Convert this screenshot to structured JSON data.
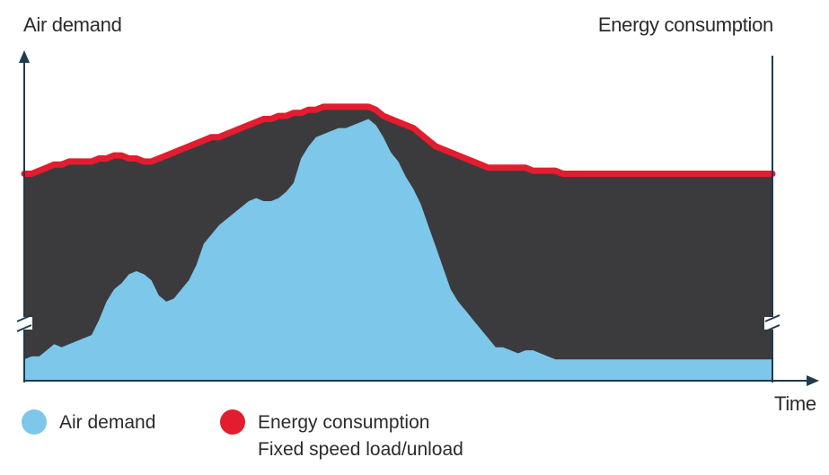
{
  "chart_data": {
    "type": "area",
    "left_axis_label": "Air demand",
    "right_axis_label": "Energy consumption",
    "xlabel": "Time",
    "ylim": [
      0,
      100
    ],
    "x": [
      0,
      1,
      2,
      3,
      4,
      5,
      6,
      7,
      8,
      9,
      10,
      11,
      12,
      13,
      14,
      15,
      16,
      17,
      18,
      19,
      20,
      21,
      22,
      23,
      24,
      25,
      26,
      27,
      28,
      29,
      30,
      31,
      32,
      33,
      34,
      35,
      36,
      37,
      38,
      39,
      40,
      41,
      42,
      43,
      44,
      45,
      46,
      47,
      48,
      49,
      50,
      51,
      52,
      53,
      54,
      55,
      56,
      57,
      58,
      59,
      60,
      61,
      62,
      63,
      64,
      65,
      66,
      67,
      68,
      69,
      70,
      71,
      72,
      73,
      74,
      75,
      76,
      77,
      78,
      79,
      80,
      81,
      82,
      83,
      84,
      85,
      86,
      87,
      88,
      89,
      90,
      91,
      92,
      93,
      94,
      95,
      96,
      97,
      98,
      99,
      100
    ],
    "series": [
      {
        "name": "Air demand",
        "color": "#7cc7ea",
        "values": [
          7,
          8,
          8,
          10,
          12,
          11,
          12,
          13,
          14,
          15,
          20,
          26,
          30,
          32,
          35,
          36,
          35,
          33,
          28,
          26,
          27,
          30,
          33,
          38,
          45,
          48,
          51,
          53,
          55,
          57,
          59,
          60,
          59,
          59,
          60,
          62,
          65,
          73,
          77,
          80,
          81,
          82,
          83,
          83,
          84,
          85,
          86,
          84,
          80,
          75,
          72,
          67,
          63,
          58,
          51,
          44,
          37,
          30,
          26,
          23,
          20,
          17,
          14,
          11,
          11,
          10,
          9,
          10,
          10,
          9,
          8,
          7,
          7,
          7,
          7,
          7,
          7,
          7,
          7,
          7,
          7,
          7,
          7,
          7,
          7,
          7,
          7,
          7,
          7,
          7,
          7,
          7,
          7,
          7,
          7,
          7,
          7,
          7,
          7,
          7,
          7
        ]
      },
      {
        "name": "Energy consumption",
        "color": "#e31c2f",
        "values": [
          68,
          68,
          69,
          70,
          71,
          71,
          72,
          72,
          72,
          72,
          73,
          73,
          74,
          74,
          73,
          73,
          72,
          72,
          73,
          74,
          75,
          76,
          77,
          78,
          79,
          80,
          80,
          81,
          82,
          83,
          84,
          85,
          86,
          86,
          87,
          87,
          88,
          88,
          89,
          89,
          90,
          90,
          90,
          90,
          90,
          90,
          90,
          89,
          87,
          86,
          85,
          84,
          83,
          81,
          79,
          77,
          76,
          75,
          74,
          73,
          72,
          71,
          70,
          70,
          70,
          70,
          70,
          70,
          69,
          69,
          69,
          69,
          68,
          68,
          68,
          68,
          68,
          68,
          68,
          68,
          68,
          68,
          68,
          68,
          68,
          68,
          68,
          68,
          68,
          68,
          68,
          68,
          68,
          68,
          68,
          68,
          68,
          68,
          68,
          68,
          68
        ]
      }
    ],
    "legend": [
      {
        "label": "Air demand",
        "color": "#7cc7ea"
      },
      {
        "label": "Energy consumption",
        "sublabel": "Fixed speed load/unload",
        "color": "#e31c2f"
      }
    ],
    "band_color": "#3b3b3d",
    "axis_color": "#1f3b4d",
    "axis_break_marks": true,
    "grid": false,
    "legend_position": "bottom-left"
  }
}
